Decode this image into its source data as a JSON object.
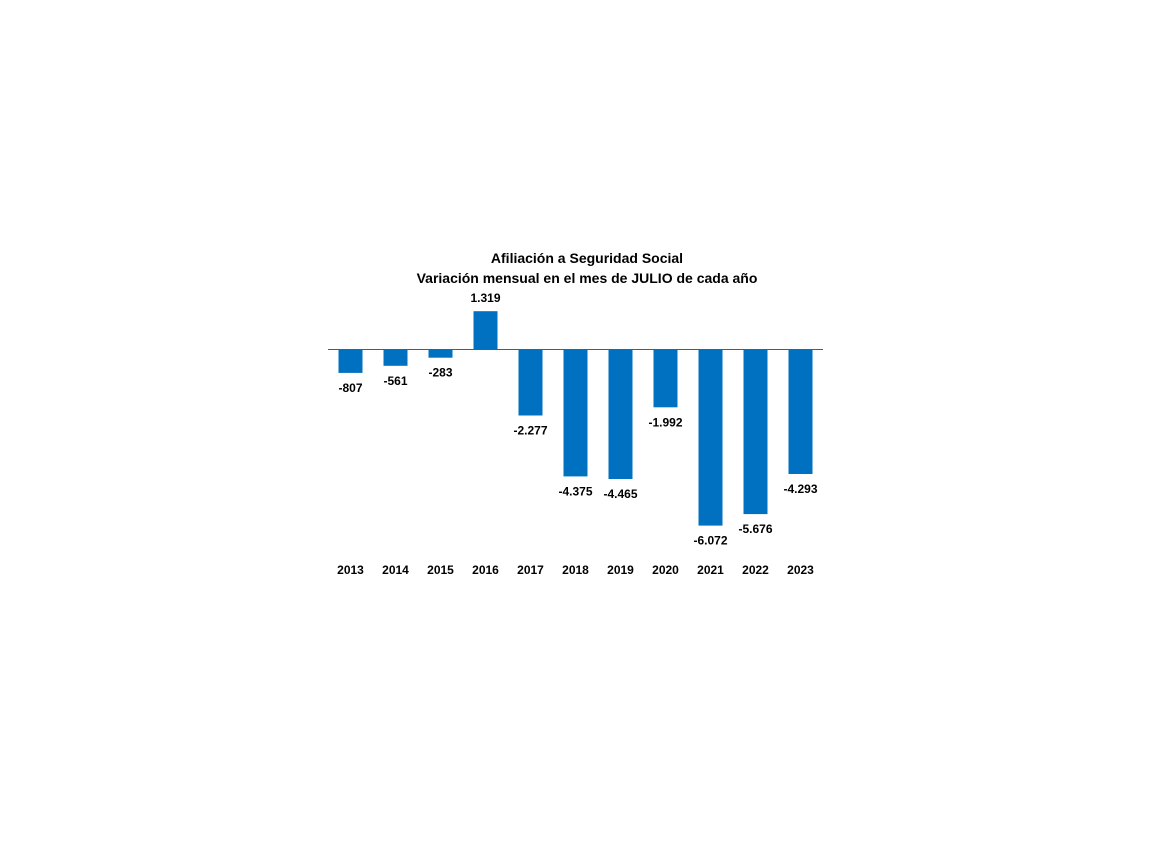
{
  "chart_data": {
    "type": "bar",
    "title": "Afiliación a Seguridad Social",
    "subtitle": "Variación mensual en el mes de JULIO de cada año",
    "categories": [
      "2013",
      "2014",
      "2015",
      "2016",
      "2017",
      "2018",
      "2019",
      "2020",
      "2021",
      "2022",
      "2023"
    ],
    "values": [
      -807,
      -561,
      -283,
      1319,
      -2277,
      -4375,
      -4465,
      -1992,
      -6072,
      -5676,
      -4293
    ],
    "value_labels": [
      "-807",
      "-561",
      "-283",
      "1.319",
      "-2.277",
      "-4.375",
      "-4.465",
      "-1.992",
      "-6.072",
      "-5.676",
      "-4.293"
    ],
    "xlabel": "",
    "ylabel": "",
    "ylim": [
      -6500,
      1500
    ],
    "grid": false,
    "legend": "none",
    "bar_color": "#0070C0",
    "axis_color": "#595959"
  }
}
